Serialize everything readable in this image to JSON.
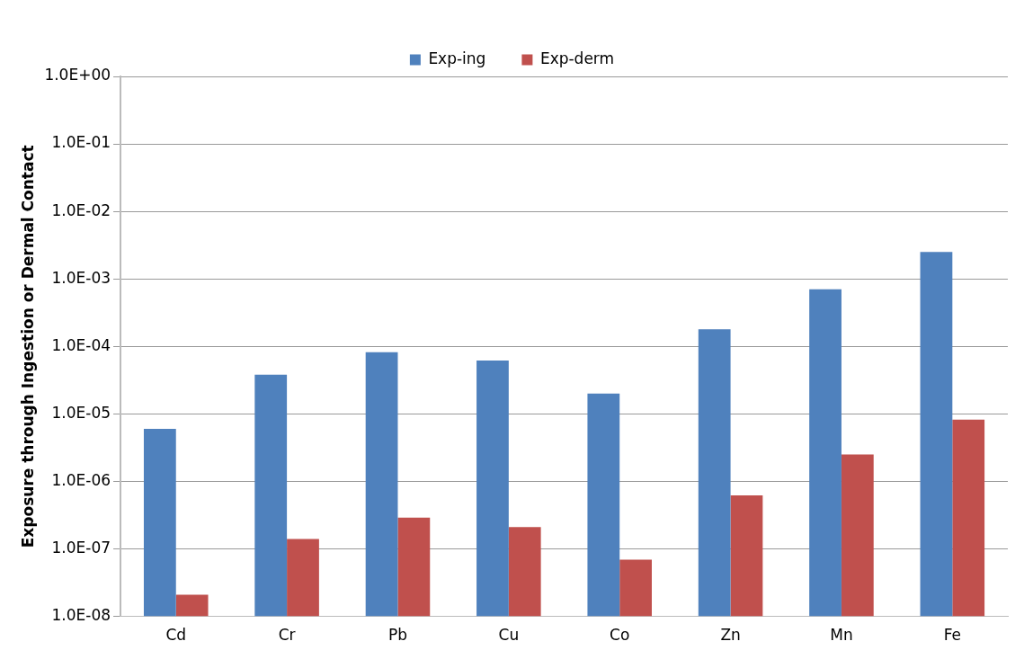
{
  "chart_data": {
    "type": "bar",
    "ylabel": "Exposure through Ingestion or Dermal Contact",
    "categories": [
      "Cd",
      "Cr",
      "Pb",
      "Cu",
      "Co",
      "Zn",
      "Mn",
      "Fe"
    ],
    "series": [
      {
        "name": "Exp-ing",
        "color": "#4f81bd",
        "values": [
          6e-06,
          3.8e-05,
          8.2e-05,
          6.2e-05,
          2e-05,
          0.00018,
          0.0007,
          0.0025
        ]
      },
      {
        "name": "Exp-derm",
        "color": "#c0504d",
        "values": [
          2.1e-08,
          1.4e-07,
          2.9e-07,
          2.1e-07,
          6.9e-08,
          6.2e-07,
          2.5e-06,
          8.2e-06
        ]
      }
    ],
    "log": "y",
    "ylim": [
      1e-08,
      1
    ],
    "yticks": [
      {
        "value": 1e-08,
        "label": "1.0E-08"
      },
      {
        "value": 1e-07,
        "label": "1.0E-07"
      },
      {
        "value": 1e-06,
        "label": "1.0E-06"
      },
      {
        "value": 1e-05,
        "label": "1.0E-05"
      },
      {
        "value": 0.0001,
        "label": "1.0E-04"
      },
      {
        "value": 0.001,
        "label": "1.0E-03"
      },
      {
        "value": 0.01,
        "label": "1.0E-02"
      },
      {
        "value": 0.1,
        "label": "1.0E-01"
      },
      {
        "value": 1,
        "label": "1.0E+00"
      }
    ],
    "grid": "y",
    "legend": "top"
  }
}
